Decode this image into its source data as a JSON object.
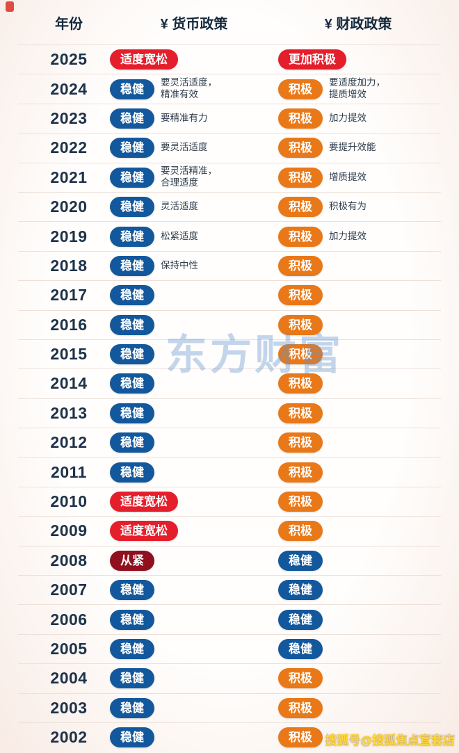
{
  "header": {
    "year": "年份",
    "monetary": "¥ 货币政策",
    "fiscal": "¥ 财政政策"
  },
  "colors": {
    "badge_red": "#e51e2b",
    "badge_blue": "#13589c",
    "badge_orange": "#e97818",
    "badge_maroon": "#90101f",
    "year_text": "#1d3248",
    "watermark_blue": "#6292cd",
    "watermark_yellow": "#ffd83a"
  },
  "watermarks": {
    "center": "东方财富",
    "bottom": "搜狐号@搜狐焦点宣套店"
  },
  "chart_data": {
    "type": "table",
    "title": "",
    "columns": [
      "年份",
      "¥ 货币政策",
      "¥ 财政政策"
    ],
    "rows": [
      {
        "year": "2025",
        "monetary": {
          "label": "适度宽松",
          "color": "red",
          "note": ""
        },
        "fiscal": {
          "label": "更加积极",
          "color": "red",
          "note": ""
        }
      },
      {
        "year": "2024",
        "monetary": {
          "label": "稳健",
          "color": "blue",
          "note": "要灵活适度，\n精准有效"
        },
        "fiscal": {
          "label": "积极",
          "color": "orange",
          "note": "要适度加力，\n提质增效"
        }
      },
      {
        "year": "2023",
        "monetary": {
          "label": "稳健",
          "color": "blue",
          "note": "要精准有力"
        },
        "fiscal": {
          "label": "积极",
          "color": "orange",
          "note": "加力提效"
        }
      },
      {
        "year": "2022",
        "monetary": {
          "label": "稳健",
          "color": "blue",
          "note": "要灵活适度"
        },
        "fiscal": {
          "label": "积极",
          "color": "orange",
          "note": "要提升效能"
        }
      },
      {
        "year": "2021",
        "monetary": {
          "label": "稳健",
          "color": "blue",
          "note": "要灵活精准，\n合理适度"
        },
        "fiscal": {
          "label": "积极",
          "color": "orange",
          "note": "增质提效"
        }
      },
      {
        "year": "2020",
        "monetary": {
          "label": "稳健",
          "color": "blue",
          "note": "灵活适度"
        },
        "fiscal": {
          "label": "积极",
          "color": "orange",
          "note": "积极有为"
        }
      },
      {
        "year": "2019",
        "monetary": {
          "label": "稳健",
          "color": "blue",
          "note": "松紧适度"
        },
        "fiscal": {
          "label": "积极",
          "color": "orange",
          "note": "加力提效"
        }
      },
      {
        "year": "2018",
        "monetary": {
          "label": "稳健",
          "color": "blue",
          "note": "保持中性"
        },
        "fiscal": {
          "label": "积极",
          "color": "orange",
          "note": ""
        }
      },
      {
        "year": "2017",
        "monetary": {
          "label": "稳健",
          "color": "blue",
          "note": ""
        },
        "fiscal": {
          "label": "积极",
          "color": "orange",
          "note": ""
        }
      },
      {
        "year": "2016",
        "monetary": {
          "label": "稳健",
          "color": "blue",
          "note": ""
        },
        "fiscal": {
          "label": "积极",
          "color": "orange",
          "note": ""
        }
      },
      {
        "year": "2015",
        "monetary": {
          "label": "稳健",
          "color": "blue",
          "note": ""
        },
        "fiscal": {
          "label": "积极",
          "color": "orange",
          "note": ""
        }
      },
      {
        "year": "2014",
        "monetary": {
          "label": "稳健",
          "color": "blue",
          "note": ""
        },
        "fiscal": {
          "label": "积极",
          "color": "orange",
          "note": ""
        }
      },
      {
        "year": "2013",
        "monetary": {
          "label": "稳健",
          "color": "blue",
          "note": ""
        },
        "fiscal": {
          "label": "积极",
          "color": "orange",
          "note": ""
        }
      },
      {
        "year": "2012",
        "monetary": {
          "label": "稳健",
          "color": "blue",
          "note": ""
        },
        "fiscal": {
          "label": "积极",
          "color": "orange",
          "note": ""
        }
      },
      {
        "year": "2011",
        "monetary": {
          "label": "稳健",
          "color": "blue",
          "note": ""
        },
        "fiscal": {
          "label": "积极",
          "color": "orange",
          "note": ""
        }
      },
      {
        "year": "2010",
        "monetary": {
          "label": "适度宽松",
          "color": "red",
          "note": ""
        },
        "fiscal": {
          "label": "积极",
          "color": "orange",
          "note": ""
        }
      },
      {
        "year": "2009",
        "monetary": {
          "label": "适度宽松",
          "color": "red",
          "note": ""
        },
        "fiscal": {
          "label": "积极",
          "color": "orange",
          "note": ""
        }
      },
      {
        "year": "2008",
        "monetary": {
          "label": "从紧",
          "color": "maroon",
          "note": ""
        },
        "fiscal": {
          "label": "稳健",
          "color": "blue",
          "note": ""
        }
      },
      {
        "year": "2007",
        "monetary": {
          "label": "稳健",
          "color": "blue",
          "note": ""
        },
        "fiscal": {
          "label": "稳健",
          "color": "blue",
          "note": ""
        }
      },
      {
        "year": "2006",
        "monetary": {
          "label": "稳健",
          "color": "blue",
          "note": ""
        },
        "fiscal": {
          "label": "稳健",
          "color": "blue",
          "note": ""
        }
      },
      {
        "year": "2005",
        "monetary": {
          "label": "稳健",
          "color": "blue",
          "note": ""
        },
        "fiscal": {
          "label": "稳健",
          "color": "blue",
          "note": ""
        }
      },
      {
        "year": "2004",
        "monetary": {
          "label": "稳健",
          "color": "blue",
          "note": ""
        },
        "fiscal": {
          "label": "积极",
          "color": "orange",
          "note": ""
        }
      },
      {
        "year": "2003",
        "monetary": {
          "label": "稳健",
          "color": "blue",
          "note": ""
        },
        "fiscal": {
          "label": "积极",
          "color": "orange",
          "note": ""
        }
      },
      {
        "year": "2002",
        "monetary": {
          "label": "稳健",
          "color": "blue",
          "note": ""
        },
        "fiscal": {
          "label": "积极",
          "color": "orange",
          "note": ""
        }
      }
    ]
  }
}
